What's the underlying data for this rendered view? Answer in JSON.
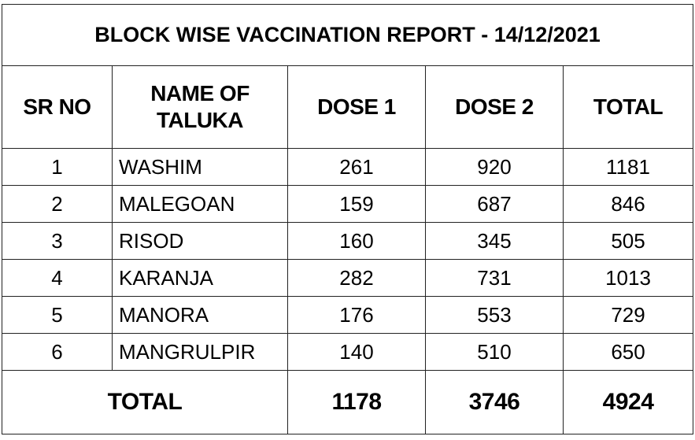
{
  "title": "BLOCK WISE VACCINATION REPORT - 14/12/2021",
  "table": {
    "header": [
      "SR NO",
      "NAME OF TALUKA",
      "DOSE 1",
      "DOSE 2",
      "TOTAL"
    ],
    "rows": [
      [
        1,
        "WASHIM",
        261,
        920,
        1181
      ],
      [
        2,
        "MALEGOAN",
        159,
        687,
        846
      ],
      [
        3,
        "RISOD",
        160,
        345,
        505
      ],
      [
        4,
        "KARANJA",
        282,
        731,
        1013
      ],
      [
        5,
        "MANORA",
        176,
        553,
        729
      ],
      [
        6,
        "MANGRULPIR",
        140,
        510,
        650
      ]
    ],
    "total": {
      "label": "TOTAL",
      "values": [
        1178,
        3746,
        4924
      ]
    }
  }
}
